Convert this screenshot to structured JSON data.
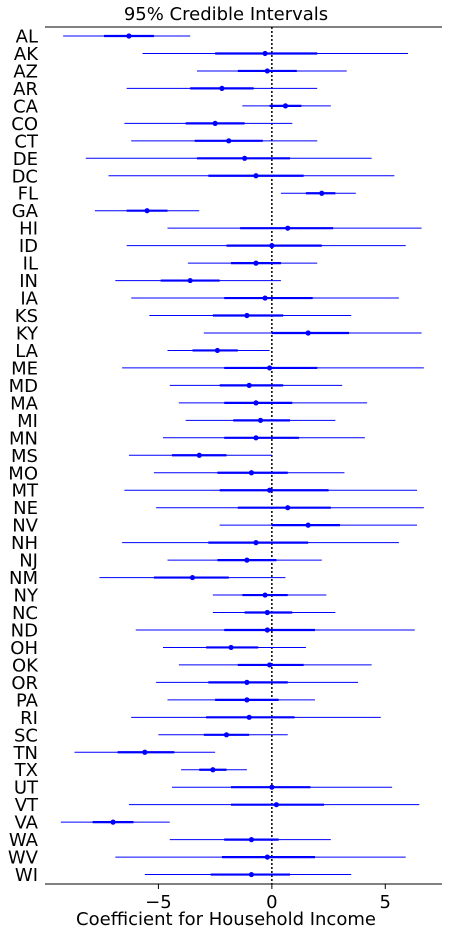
{
  "chart_data": {
    "type": "interval",
    "title": "95% Credible Intervals",
    "xlabel": "Coefficient for Household Income",
    "ylabel": "",
    "xlim": [
      -10,
      7.5
    ],
    "xticks": [
      -5,
      0,
      5
    ],
    "reference_line_x": 0,
    "grid": false,
    "colors": {
      "interval": "#0000ff",
      "reference": "#000000"
    },
    "categories": [
      "AL",
      "AK",
      "AZ",
      "AR",
      "CA",
      "CO",
      "CT",
      "DE",
      "DC",
      "FL",
      "GA",
      "HI",
      "ID",
      "IL",
      "IN",
      "IA",
      "KS",
      "KY",
      "LA",
      "ME",
      "MD",
      "MA",
      "MI",
      "MN",
      "MS",
      "MO",
      "MT",
      "NE",
      "NV",
      "NH",
      "NJ",
      "NM",
      "NY",
      "NC",
      "ND",
      "OH",
      "OK",
      "OR",
      "PA",
      "RI",
      "SC",
      "TN",
      "TX",
      "UT",
      "VT",
      "VA",
      "WA",
      "WV",
      "WI"
    ],
    "series": [
      {
        "median": [
          -6.3,
          -0.3,
          -0.2,
          -2.2,
          0.6,
          -2.5,
          -1.9,
          -1.2,
          -0.7,
          2.2,
          -5.5,
          0.7,
          0.0,
          -0.7,
          -3.6,
          -0.3,
          -1.1,
          1.6,
          -2.4,
          -0.1,
          -1.0,
          -0.7,
          -0.5,
          -0.7,
          -3.2,
          -0.9,
          -0.1,
          0.7,
          1.6,
          -0.7,
          -1.1,
          -3.5,
          -0.3,
          -0.2,
          -0.2,
          -1.8,
          -0.1,
          -1.1,
          -1.1,
          -1.0,
          -2.0,
          -5.6,
          -2.6,
          0.0,
          0.2,
          -7.0,
          -0.9,
          -0.2,
          -0.9
        ],
        "inner_low": [
          -7.4,
          -2.5,
          -1.5,
          -3.6,
          -0.1,
          -3.8,
          -3.4,
          -3.3,
          -2.8,
          1.5,
          -6.4,
          -1.4,
          -2.0,
          -1.8,
          -4.9,
          -2.1,
          -2.6,
          0.0,
          -3.5,
          -2.1,
          -2.3,
          -2.1,
          -1.7,
          -2.1,
          -4.4,
          -2.4,
          -2.3,
          -1.5,
          0.0,
          -2.8,
          -2.4,
          -5.2,
          -1.3,
          -1.2,
          -2.1,
          -2.9,
          -1.5,
          -2.8,
          -2.5,
          -2.9,
          -3.0,
          -6.8,
          -3.2,
          -1.8,
          -1.8,
          -7.9,
          -2.1,
          -2.2,
          -2.7
        ],
        "inner_high": [
          -5.2,
          2.0,
          1.1,
          -0.8,
          1.3,
          -1.2,
          -0.4,
          0.8,
          1.4,
          2.8,
          -4.6,
          2.7,
          2.2,
          0.4,
          -2.3,
          1.8,
          0.5,
          3.4,
          -1.5,
          2.0,
          0.5,
          0.9,
          0.8,
          1.2,
          -2.0,
          0.7,
          2.5,
          2.6,
          3.0,
          1.6,
          0.2,
          -1.9,
          0.7,
          0.9,
          1.9,
          -0.6,
          1.4,
          0.7,
          0.3,
          1.0,
          -1.0,
          -4.3,
          -2.0,
          1.7,
          2.3,
          -6.1,
          0.3,
          1.9,
          0.8
        ],
        "outer_low": [
          -9.2,
          -5.7,
          -3.3,
          -6.4,
          -1.3,
          -6.5,
          -6.2,
          -8.2,
          -7.2,
          0.4,
          -7.8,
          -4.6,
          -6.4,
          -3.7,
          -6.9,
          -6.2,
          -5.4,
          -3.0,
          -4.6,
          -6.6,
          -4.5,
          -4.1,
          -3.8,
          -4.8,
          -6.3,
          -5.2,
          -6.5,
          -5.1,
          -2.3,
          -6.6,
          -4.6,
          -7.6,
          -2.6,
          -2.6,
          -6.0,
          -4.8,
          -4.1,
          -5.1,
          -4.6,
          -6.2,
          -5.0,
          -8.7,
          -4.0,
          -4.4,
          -6.3,
          -9.3,
          -4.5,
          -6.9,
          -5.6
        ],
        "outer_high": [
          -3.6,
          6.0,
          3.3,
          2.0,
          2.6,
          0.9,
          2.0,
          4.4,
          5.4,
          3.7,
          -3.2,
          6.6,
          5.9,
          2.0,
          0.4,
          5.6,
          3.5,
          6.6,
          -0.1,
          6.7,
          3.1,
          4.2,
          2.8,
          4.1,
          0.0,
          3.2,
          6.4,
          6.7,
          6.4,
          5.6,
          2.2,
          0.6,
          2.4,
          2.8,
          6.3,
          1.5,
          4.4,
          3.8,
          1.9,
          4.8,
          0.7,
          -2.5,
          -1.1,
          5.3,
          6.5,
          -4.5,
          2.6,
          5.9,
          3.5
        ]
      }
    ]
  }
}
